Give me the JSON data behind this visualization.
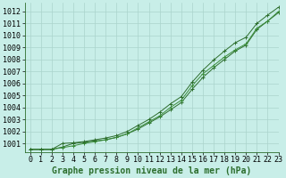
{
  "xlabel": "Graphe pression niveau de la mer (hPa)",
  "background_color": "#c8eee8",
  "grid_color": "#aad4cc",
  "line_color": "#2d6e2d",
  "line_color2": "#3a8c3a",
  "xlim": [
    -0.5,
    23
  ],
  "ylim": [
    1000.3,
    1012.7
  ],
  "yticks": [
    1001,
    1002,
    1003,
    1004,
    1005,
    1006,
    1007,
    1008,
    1009,
    1010,
    1011,
    1012
  ],
  "xticks": [
    0,
    1,
    2,
    3,
    4,
    5,
    6,
    7,
    8,
    9,
    10,
    11,
    12,
    13,
    14,
    15,
    16,
    17,
    18,
    19,
    20,
    21,
    22,
    23
  ],
  "series1": [
    1000.5,
    1000.5,
    1000.5,
    1000.7,
    1001.0,
    1001.1,
    1001.2,
    1001.3,
    1001.5,
    1001.8,
    1002.2,
    1002.7,
    1003.2,
    1003.8,
    1004.4,
    1005.5,
    1006.5,
    1007.3,
    1008.0,
    1008.7,
    1009.2,
    1010.5,
    1011.2,
    1011.9
  ],
  "series2": [
    1000.5,
    1000.5,
    1000.5,
    1000.65,
    1000.8,
    1001.0,
    1001.15,
    1001.3,
    1001.5,
    1001.8,
    1002.3,
    1002.8,
    1003.3,
    1004.0,
    1004.6,
    1005.8,
    1006.8,
    1007.5,
    1008.2,
    1008.8,
    1009.3,
    1010.6,
    1011.2,
    1012.0
  ],
  "series3": [
    1000.5,
    1000.5,
    1000.5,
    1001.0,
    1001.05,
    1001.15,
    1001.3,
    1001.45,
    1001.65,
    1002.0,
    1002.5,
    1003.0,
    1003.6,
    1004.3,
    1004.9,
    1006.1,
    1007.1,
    1007.95,
    1008.7,
    1009.4,
    1009.85,
    1011.0,
    1011.7,
    1012.35
  ],
  "xlabel_fontsize": 7,
  "tick_fontsize": 6,
  "figwidth": 3.2,
  "figheight": 2.0,
  "dpi": 100
}
